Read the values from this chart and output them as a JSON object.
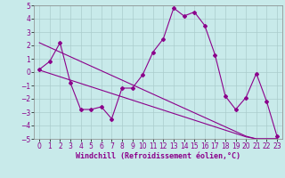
{
  "title": "",
  "xlabel": "Windchill (Refroidissement éolien,°C)",
  "ylabel": "",
  "bg_color": "#c8eaea",
  "line_color": "#8b008b",
  "x_data": [
    0,
    1,
    2,
    3,
    4,
    5,
    6,
    7,
    8,
    9,
    10,
    11,
    12,
    13,
    14,
    15,
    16,
    17,
    18,
    19,
    20,
    21,
    22,
    23
  ],
  "y_main": [
    0.2,
    0.8,
    2.2,
    -0.8,
    -2.8,
    -2.8,
    -2.6,
    -3.5,
    -1.2,
    -1.2,
    -0.2,
    1.5,
    2.5,
    4.8,
    4.2,
    4.5,
    3.5,
    1.3,
    -1.8,
    -2.8,
    -1.9,
    -0.1,
    -2.2,
    -4.8
  ],
  "y_trend1": [
    2.2,
    1.85,
    1.5,
    1.15,
    0.8,
    0.45,
    0.1,
    -0.25,
    -0.6,
    -0.95,
    -1.3,
    -1.65,
    -2.0,
    -2.35,
    -2.7,
    -3.05,
    -3.4,
    -3.75,
    -4.1,
    -4.45,
    -4.8,
    -5.0,
    -5.0,
    -5.0
  ],
  "y_trend2": [
    0.15,
    -0.1,
    -0.35,
    -0.6,
    -0.85,
    -1.1,
    -1.35,
    -1.6,
    -1.85,
    -2.1,
    -2.35,
    -2.6,
    -2.85,
    -3.1,
    -3.35,
    -3.6,
    -3.85,
    -4.1,
    -4.35,
    -4.6,
    -4.85,
    -5.0,
    -5.0,
    -5.0
  ],
  "ylim": [
    -5,
    5
  ],
  "xlim": [
    -0.5,
    23.5
  ],
  "yticks": [
    -5,
    -4,
    -3,
    -2,
    -1,
    0,
    1,
    2,
    3,
    4,
    5
  ],
  "xticks": [
    0,
    1,
    2,
    3,
    4,
    5,
    6,
    7,
    8,
    9,
    10,
    11,
    12,
    13,
    14,
    15,
    16,
    17,
    18,
    19,
    20,
    21,
    22,
    23
  ],
  "grid_color": "#aacccc",
  "marker": "D",
  "markersize": 2.0,
  "linewidth": 0.8,
  "xlabel_fontsize": 6,
  "tick_fontsize": 5.5
}
